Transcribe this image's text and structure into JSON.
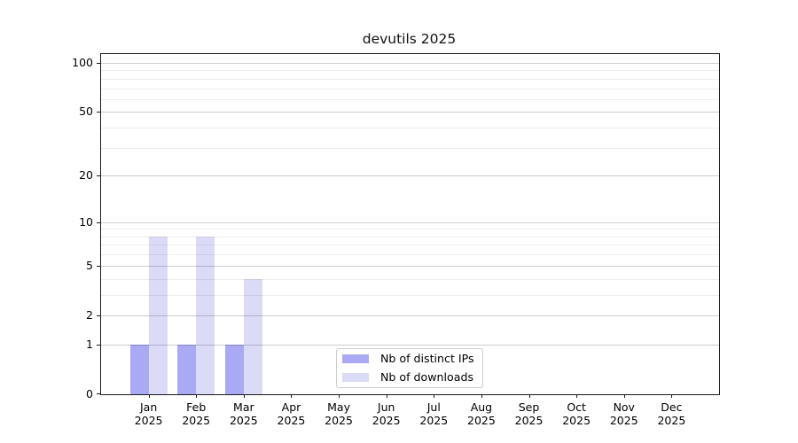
{
  "chart_data": {
    "type": "bar",
    "title": "devutils 2025",
    "categories": [
      "Jan 2025",
      "Feb 2025",
      "Mar 2025",
      "Apr 2025",
      "May 2025",
      "Jun 2025",
      "Jul 2025",
      "Aug 2025",
      "Sep 2025",
      "Oct 2025",
      "Nov 2025",
      "Dec 2025"
    ],
    "series": [
      {
        "name": "Nb of distinct IPs",
        "color": "#a9a9f4",
        "values": [
          1,
          1,
          1,
          0,
          0,
          0,
          0,
          0,
          0,
          0,
          0,
          0
        ]
      },
      {
        "name": "Nb of downloads",
        "color": "#dbdbf8",
        "values": [
          8,
          8,
          4,
          0,
          0,
          0,
          0,
          0,
          0,
          0,
          0,
          0
        ]
      }
    ],
    "xlabel": "",
    "ylabel": "",
    "y_scale": "log1p",
    "y_ticks": [
      0,
      1,
      2,
      5,
      10,
      20,
      50,
      100
    ],
    "y_minor_gridlines": [
      3,
      4,
      6,
      7,
      8,
      9,
      30,
      40,
      60,
      70,
      80,
      90
    ],
    "ylim": [
      0,
      113
    ],
    "grid": true,
    "legend_position": "lower center"
  },
  "colors": {
    "background": "#ffffff",
    "spine": "#1a1a1a",
    "major_grid": "#d0d0d0",
    "minor_grid": "#ededed"
  }
}
